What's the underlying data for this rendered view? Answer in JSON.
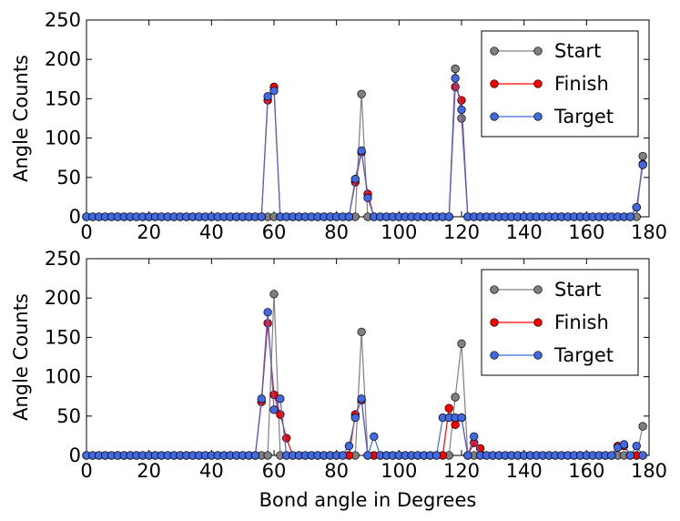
{
  "chart_data": [
    {
      "type": "line",
      "title": "",
      "xlabel": "",
      "ylabel": "Angle Counts",
      "xlim": [
        0,
        180
      ],
      "ylim": [
        0,
        250
      ],
      "xticks": [
        0,
        20,
        40,
        60,
        80,
        100,
        120,
        140,
        160,
        180
      ],
      "yticks": [
        0,
        50,
        100,
        150,
        200,
        250
      ],
      "grid": false,
      "legend_position": "top-right",
      "series": [
        {
          "name": "Start",
          "color": "#808080",
          "x": [
            0,
            2,
            4,
            6,
            8,
            10,
            12,
            14,
            16,
            18,
            20,
            22,
            24,
            26,
            28,
            30,
            32,
            34,
            36,
            38,
            40,
            42,
            44,
            46,
            48,
            50,
            52,
            54,
            56,
            58,
            60,
            62,
            64,
            66,
            68,
            70,
            72,
            74,
            76,
            78,
            80,
            82,
            84,
            86,
            88,
            90,
            92,
            94,
            96,
            98,
            100,
            102,
            104,
            106,
            108,
            110,
            112,
            114,
            116,
            118,
            120,
            122,
            124,
            126,
            128,
            130,
            132,
            134,
            136,
            138,
            140,
            142,
            144,
            146,
            148,
            150,
            152,
            154,
            156,
            158,
            160,
            162,
            164,
            166,
            168,
            170,
            172,
            174,
            176,
            178
          ],
          "y": [
            0,
            0,
            0,
            0,
            0,
            0,
            0,
            0,
            0,
            0,
            0,
            0,
            0,
            0,
            0,
            0,
            0,
            0,
            0,
            0,
            0,
            0,
            0,
            0,
            0,
            0,
            0,
            0,
            0,
            0,
            0,
            0,
            0,
            0,
            0,
            0,
            0,
            0,
            0,
            0,
            0,
            0,
            0,
            0,
            156,
            0,
            0,
            0,
            0,
            0,
            0,
            0,
            0,
            0,
            0,
            0,
            0,
            0,
            0,
            188,
            125,
            0,
            0,
            0,
            0,
            0,
            0,
            0,
            0,
            0,
            0,
            0,
            0,
            0,
            0,
            0,
            0,
            0,
            0,
            0,
            0,
            0,
            0,
            0,
            0,
            0,
            0,
            0,
            0,
            77
          ]
        },
        {
          "name": "Finish",
          "color": "#ff0000",
          "x": [
            0,
            2,
            4,
            6,
            8,
            10,
            12,
            14,
            16,
            18,
            20,
            22,
            24,
            26,
            28,
            30,
            32,
            34,
            36,
            38,
            40,
            42,
            44,
            46,
            48,
            50,
            52,
            54,
            56,
            58,
            60,
            62,
            64,
            66,
            68,
            70,
            72,
            74,
            76,
            78,
            80,
            82,
            84,
            86,
            88,
            90,
            92,
            94,
            96,
            98,
            100,
            102,
            104,
            106,
            108,
            110,
            112,
            114,
            116,
            118,
            120,
            122,
            124,
            126,
            128,
            130,
            132,
            134,
            136,
            138,
            140,
            142,
            144,
            146,
            148,
            150,
            152,
            154,
            156,
            158,
            160,
            162,
            164,
            166,
            168,
            170,
            172,
            174,
            176,
            178
          ],
          "y": [
            0,
            0,
            0,
            0,
            0,
            0,
            0,
            0,
            0,
            0,
            0,
            0,
            0,
            0,
            0,
            0,
            0,
            0,
            0,
            0,
            0,
            0,
            0,
            0,
            0,
            0,
            0,
            0,
            0,
            148,
            165,
            0,
            0,
            0,
            0,
            0,
            0,
            0,
            0,
            0,
            0,
            0,
            0,
            44,
            82,
            29,
            0,
            0,
            0,
            0,
            0,
            0,
            0,
            0,
            0,
            0,
            0,
            0,
            0,
            165,
            148,
            0,
            0,
            0,
            0,
            0,
            0,
            0,
            0,
            0,
            0,
            0,
            0,
            0,
            0,
            0,
            0,
            0,
            0,
            0,
            0,
            0,
            0,
            0,
            0,
            0,
            0,
            0,
            12,
            67
          ]
        },
        {
          "name": "Target",
          "color": "#4169e1",
          "x": [
            0,
            2,
            4,
            6,
            8,
            10,
            12,
            14,
            16,
            18,
            20,
            22,
            24,
            26,
            28,
            30,
            32,
            34,
            36,
            38,
            40,
            42,
            44,
            46,
            48,
            50,
            52,
            54,
            56,
            58,
            60,
            62,
            64,
            66,
            68,
            70,
            72,
            74,
            76,
            78,
            80,
            82,
            84,
            86,
            88,
            90,
            92,
            94,
            96,
            98,
            100,
            102,
            104,
            106,
            108,
            110,
            112,
            114,
            116,
            118,
            120,
            122,
            124,
            126,
            128,
            130,
            132,
            134,
            136,
            138,
            140,
            142,
            144,
            146,
            148,
            150,
            152,
            154,
            156,
            158,
            160,
            162,
            164,
            166,
            168,
            170,
            172,
            174,
            176,
            178
          ],
          "y": [
            0,
            0,
            0,
            0,
            0,
            0,
            0,
            0,
            0,
            0,
            0,
            0,
            0,
            0,
            0,
            0,
            0,
            0,
            0,
            0,
            0,
            0,
            0,
            0,
            0,
            0,
            0,
            0,
            0,
            153,
            160,
            0,
            0,
            0,
            0,
            0,
            0,
            0,
            0,
            0,
            0,
            0,
            0,
            48,
            84,
            24,
            0,
            0,
            0,
            0,
            0,
            0,
            0,
            0,
            0,
            0,
            0,
            0,
            0,
            176,
            136,
            0,
            0,
            0,
            0,
            0,
            0,
            0,
            0,
            0,
            0,
            0,
            0,
            0,
            0,
            0,
            0,
            0,
            0,
            0,
            0,
            0,
            0,
            0,
            0,
            0,
            0,
            0,
            12,
            66
          ]
        }
      ]
    },
    {
      "type": "line",
      "title": "",
      "xlabel": "Bond angle in Degrees",
      "ylabel": "Angle Counts",
      "xlim": [
        0,
        180
      ],
      "ylim": [
        0,
        250
      ],
      "xticks": [
        0,
        20,
        40,
        60,
        80,
        100,
        120,
        140,
        160,
        180
      ],
      "yticks": [
        0,
        50,
        100,
        150,
        200,
        250
      ],
      "grid": false,
      "legend_position": "top-right",
      "series": [
        {
          "name": "Start",
          "color": "#808080",
          "x": [
            0,
            2,
            4,
            6,
            8,
            10,
            12,
            14,
            16,
            18,
            20,
            22,
            24,
            26,
            28,
            30,
            32,
            34,
            36,
            38,
            40,
            42,
            44,
            46,
            48,
            50,
            52,
            54,
            56,
            58,
            60,
            62,
            64,
            66,
            68,
            70,
            72,
            74,
            76,
            78,
            80,
            82,
            84,
            86,
            88,
            90,
            92,
            94,
            96,
            98,
            100,
            102,
            104,
            106,
            108,
            110,
            112,
            114,
            116,
            118,
            120,
            122,
            124,
            126,
            128,
            130,
            132,
            134,
            136,
            138,
            140,
            142,
            144,
            146,
            148,
            150,
            152,
            154,
            156,
            158,
            160,
            162,
            164,
            166,
            168,
            170,
            172,
            174,
            176,
            178
          ],
          "y": [
            0,
            0,
            0,
            0,
            0,
            0,
            0,
            0,
            0,
            0,
            0,
            0,
            0,
            0,
            0,
            0,
            0,
            0,
            0,
            0,
            0,
            0,
            0,
            0,
            0,
            0,
            0,
            0,
            0,
            0,
            205,
            0,
            0,
            0,
            0,
            0,
            0,
            0,
            0,
            0,
            0,
            0,
            0,
            0,
            157,
            0,
            0,
            0,
            0,
            0,
            0,
            0,
            0,
            0,
            0,
            0,
            0,
            0,
            0,
            74,
            142,
            0,
            0,
            0,
            0,
            0,
            0,
            0,
            0,
            0,
            0,
            0,
            0,
            0,
            0,
            0,
            0,
            0,
            0,
            0,
            0,
            0,
            0,
            0,
            0,
            0,
            0,
            0,
            0,
            37
          ]
        },
        {
          "name": "Finish",
          "color": "#ff0000",
          "x": [
            0,
            2,
            4,
            6,
            8,
            10,
            12,
            14,
            16,
            18,
            20,
            22,
            24,
            26,
            28,
            30,
            32,
            34,
            36,
            38,
            40,
            42,
            44,
            46,
            48,
            50,
            52,
            54,
            56,
            58,
            60,
            62,
            64,
            66,
            68,
            70,
            72,
            74,
            76,
            78,
            80,
            82,
            84,
            86,
            88,
            90,
            92,
            94,
            96,
            98,
            100,
            102,
            104,
            106,
            108,
            110,
            112,
            114,
            116,
            118,
            120,
            122,
            124,
            126,
            128,
            130,
            132,
            134,
            136,
            138,
            140,
            142,
            144,
            146,
            148,
            150,
            152,
            154,
            156,
            158,
            160,
            162,
            164,
            166,
            168,
            170,
            172,
            174,
            176,
            178
          ],
          "y": [
            0,
            0,
            0,
            0,
            0,
            0,
            0,
            0,
            0,
            0,
            0,
            0,
            0,
            0,
            0,
            0,
            0,
            0,
            0,
            0,
            0,
            0,
            0,
            0,
            0,
            0,
            0,
            0,
            68,
            168,
            77,
            52,
            22,
            0,
            0,
            0,
            0,
            0,
            0,
            0,
            0,
            0,
            0,
            52,
            70,
            0,
            0,
            0,
            0,
            0,
            0,
            0,
            0,
            0,
            0,
            0,
            0,
            0,
            60,
            39,
            48,
            0,
            16,
            9,
            0,
            0,
            0,
            0,
            0,
            0,
            0,
            0,
            0,
            0,
            0,
            0,
            0,
            0,
            0,
            0,
            0,
            0,
            0,
            0,
            0,
            12,
            12,
            0,
            0,
            0
          ]
        },
        {
          "name": "Target",
          "color": "#4169e1",
          "x": [
            0,
            2,
            4,
            6,
            8,
            10,
            12,
            14,
            16,
            18,
            20,
            22,
            24,
            26,
            28,
            30,
            32,
            34,
            36,
            38,
            40,
            42,
            44,
            46,
            48,
            50,
            52,
            54,
            56,
            58,
            60,
            62,
            64,
            66,
            68,
            70,
            72,
            74,
            76,
            78,
            80,
            82,
            84,
            86,
            88,
            90,
            92,
            94,
            96,
            98,
            100,
            102,
            104,
            106,
            108,
            110,
            112,
            114,
            116,
            118,
            120,
            122,
            124,
            126,
            128,
            130,
            132,
            134,
            136,
            138,
            140,
            142,
            144,
            146,
            148,
            150,
            152,
            154,
            156,
            158,
            160,
            162,
            164,
            166,
            168,
            170,
            172,
            174,
            176,
            178
          ],
          "y": [
            0,
            0,
            0,
            0,
            0,
            0,
            0,
            0,
            0,
            0,
            0,
            0,
            0,
            0,
            0,
            0,
            0,
            0,
            0,
            0,
            0,
            0,
            0,
            0,
            0,
            0,
            0,
            0,
            72,
            182,
            58,
            72,
            0,
            0,
            0,
            0,
            0,
            0,
            0,
            0,
            0,
            0,
            12,
            48,
            72,
            0,
            24,
            0,
            0,
            0,
            0,
            0,
            0,
            0,
            0,
            0,
            0,
            48,
            48,
            48,
            48,
            0,
            24,
            0,
            0,
            0,
            0,
            0,
            0,
            0,
            0,
            0,
            0,
            0,
            0,
            0,
            0,
            0,
            0,
            0,
            0,
            0,
            0,
            0,
            0,
            10,
            14,
            0,
            12,
            0
          ]
        }
      ]
    }
  ]
}
